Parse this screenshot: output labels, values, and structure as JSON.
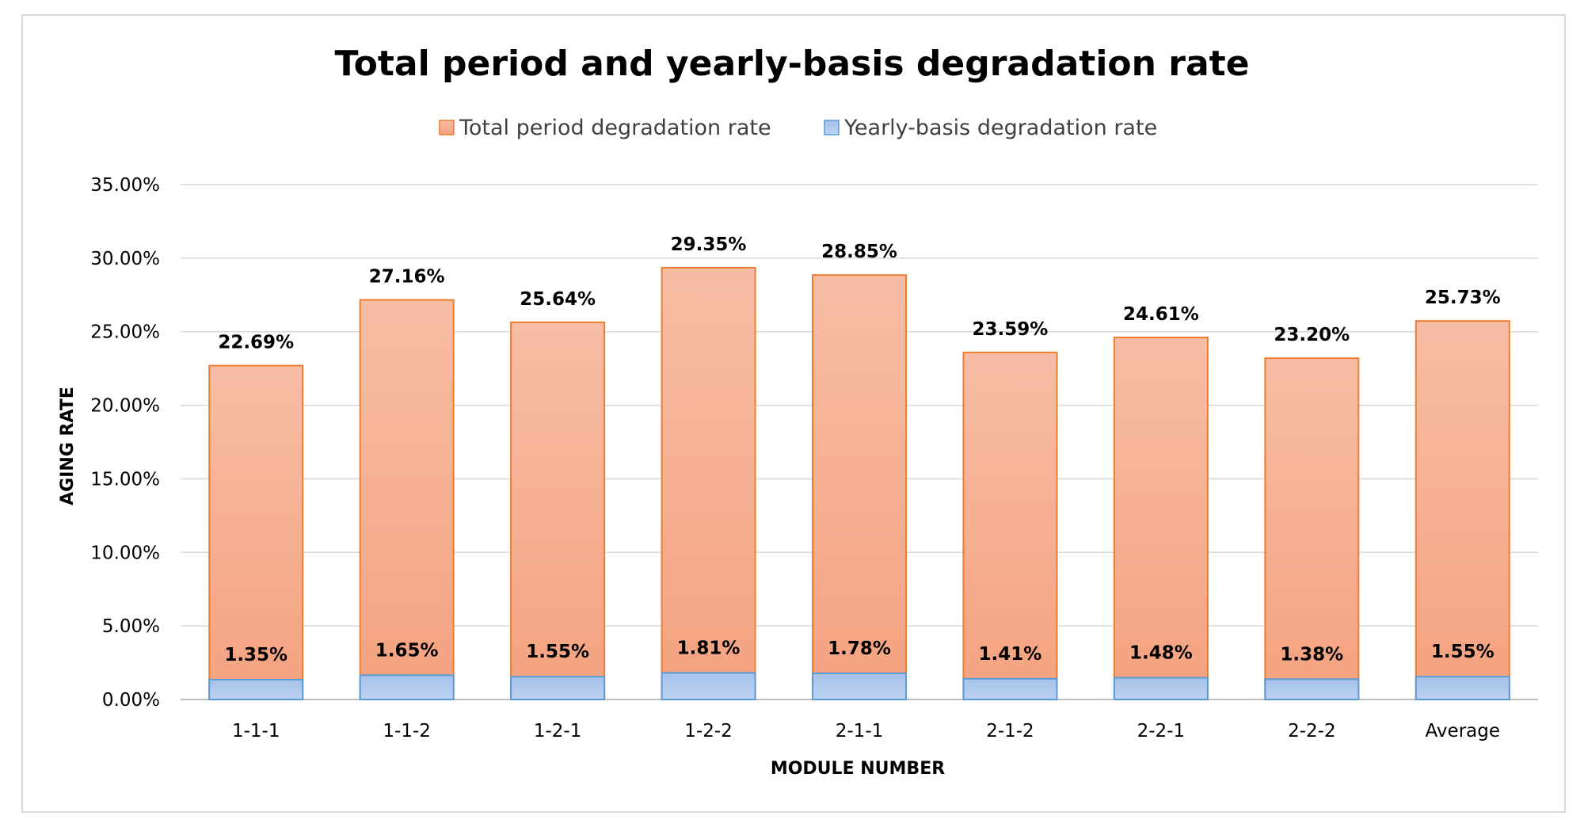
{
  "chart_data": {
    "type": "bar",
    "stacked": false,
    "overlap": true,
    "title": "Total period and yearly-basis degradation rate",
    "xlabel": "MODULE NUMBER",
    "ylabel": "AGING RATE",
    "ylim": [
      0,
      0.35
    ],
    "ytick_step": 0.05,
    "yticks": [
      "0.00%",
      "5.00%",
      "10.00%",
      "15.00%",
      "20.00%",
      "25.00%",
      "30.00%",
      "35.00%"
    ],
    "grid": true,
    "legend_position": "top-center",
    "categories": [
      "1-1-1",
      "1-1-2",
      "1-2-1",
      "1-2-2",
      "2-1-1",
      "2-1-2",
      "2-2-1",
      "2-2-2",
      "Average"
    ],
    "series": [
      {
        "name": "Total period degradation rate",
        "color": "#f4a582",
        "border": "#ed7d31",
        "values": [
          0.2269,
          0.2716,
          0.2564,
          0.2935,
          0.2885,
          0.2359,
          0.2461,
          0.232,
          0.2573
        ],
        "labels": [
          "22.69%",
          "27.16%",
          "25.64%",
          "29.35%",
          "28.85%",
          "23.59%",
          "24.61%",
          "23.20%",
          "25.73%"
        ]
      },
      {
        "name": "Yearly-basis degradation rate",
        "color": "#a9c4eb",
        "border": "#5b9bd5",
        "values": [
          0.0135,
          0.0165,
          0.0155,
          0.0181,
          0.0178,
          0.0141,
          0.0148,
          0.0138,
          0.0155
        ],
        "labels": [
          "1.35%",
          "1.65%",
          "1.55%",
          "1.81%",
          "1.78%",
          "1.41%",
          "1.48%",
          "1.38%",
          "1.55%"
        ]
      }
    ]
  }
}
